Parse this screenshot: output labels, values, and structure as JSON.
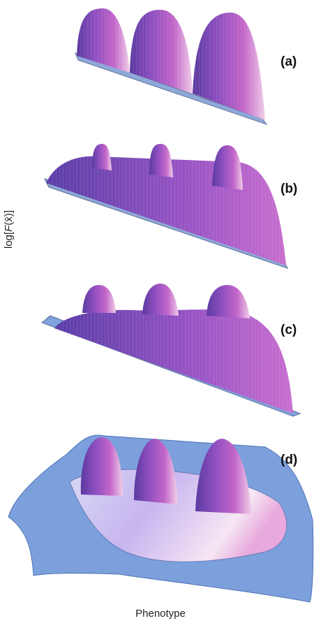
{
  "panels": [
    {
      "label": "(a)"
    },
    {
      "label": "(b)"
    },
    {
      "label": "(c)"
    },
    {
      "label": "(d)"
    }
  ],
  "axes": {
    "y_label_prefix": "log[",
    "y_label_var": "F",
    "y_label_arg": "(x̄)",
    "y_label_suffix": "]",
    "x_label": "Phenotype"
  },
  "colors": {
    "surface_light": "#f3d8ee",
    "surface_mid": "#b058c8",
    "surface_dark": "#5b3aa0",
    "base_plane": "#6f97d8"
  }
}
